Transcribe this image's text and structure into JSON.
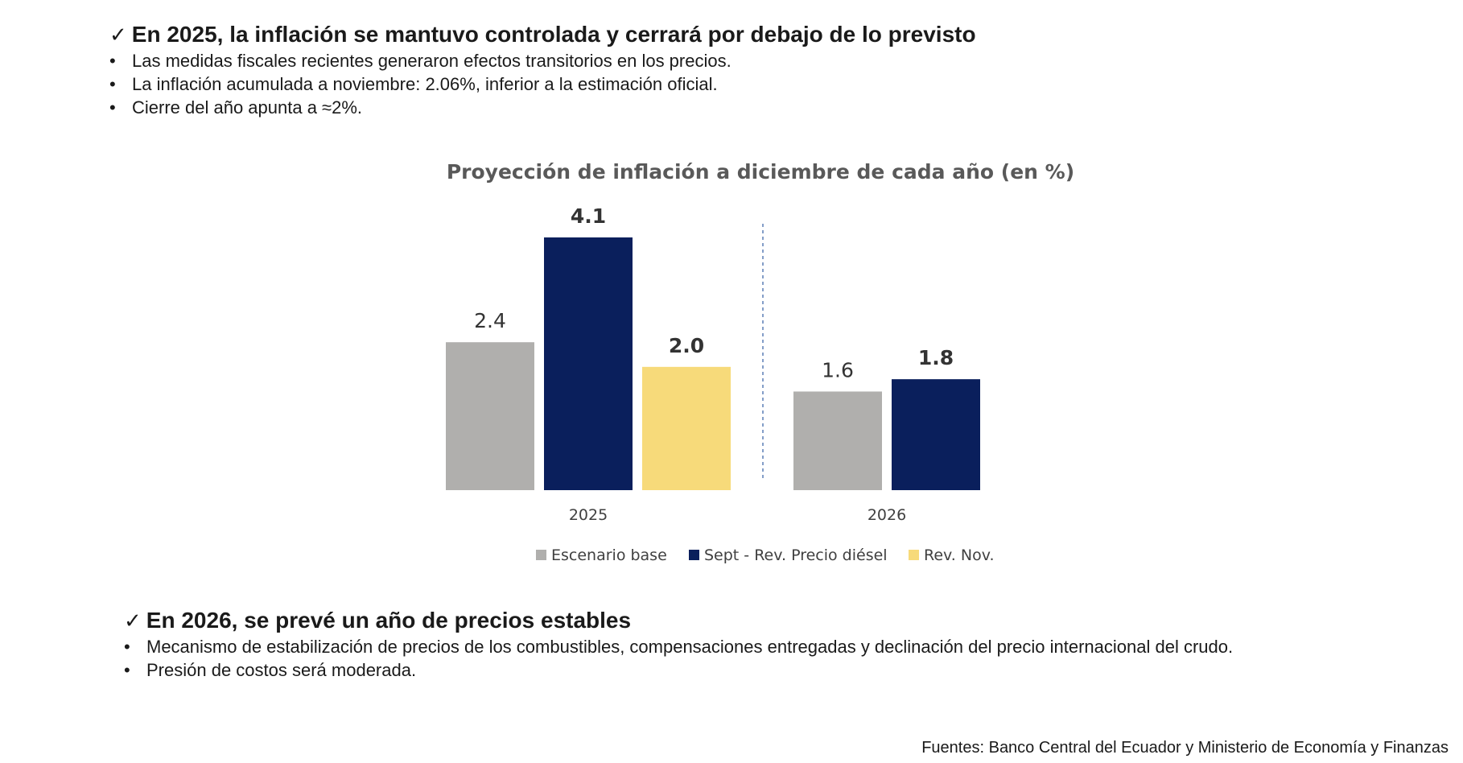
{
  "top_section": {
    "heading": "En 2025, la inflación se mantuvo controlada y cerrará por debajo de lo previsto",
    "bullets": [
      "Las medidas fiscales recientes generaron efectos transitorios en los precios.",
      "La inflación acumulada a noviembre: 2.06%, inferior a la estimación oficial.",
      "Cierre del año apunta a ≈2%."
    ]
  },
  "bottom_section": {
    "heading": "En 2026, se prevé un año de precios estables",
    "bullets": [
      "Mecanismo de estabilización de precios de los combustibles, compensaciones entregadas y declinación del precio internacional del crudo.",
      "Presión de costos será moderada."
    ]
  },
  "check_icon": "✓",
  "bullet_glyph": "•",
  "source": "Fuentes: Banco Central del Ecuador y Ministerio de Economía y Finanzas",
  "chart_data": {
    "type": "bar",
    "title": "Proyección de inflación a diciembre de cada año (en %)",
    "categories": [
      "2025",
      "2026"
    ],
    "series": [
      {
        "name": "Escenario base",
        "color": "#b0afad",
        "values": [
          2.4,
          1.6
        ],
        "labels": [
          "2.4",
          "1.6"
        ],
        "bold_label": false
      },
      {
        "name": "Sept - Rev. Precio diésel",
        "color": "#0a1f5c",
        "values": [
          4.1,
          1.8
        ],
        "labels": [
          "4.1",
          "1.8"
        ],
        "bold_label": true
      },
      {
        "name": "Rev. Nov.",
        "color": "#f7da7a",
        "values": [
          2.0,
          null
        ],
        "labels": [
          "2.0",
          null
        ],
        "bold_label": true
      }
    ],
    "xlabel": "",
    "ylabel": "",
    "ylim": [
      0,
      4.1
    ],
    "grid": false,
    "legend": "bottom-center",
    "separator": "dashed-vertical"
  }
}
